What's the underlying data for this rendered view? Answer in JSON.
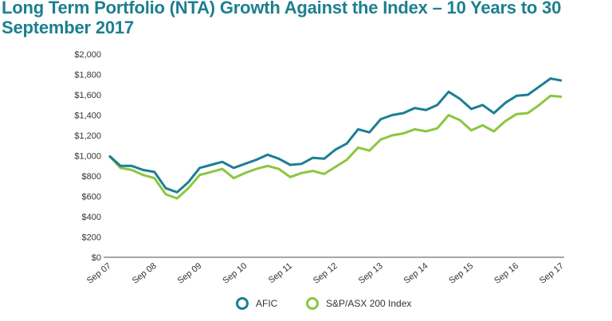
{
  "chart_data": {
    "type": "line",
    "title": "Long Term Portfolio (NTA) Growth Against the Index – 10 Years to 30 September 2017",
    "xlabel": "",
    "ylabel": "",
    "ylim": [
      0,
      2000
    ],
    "yticks": [
      "$0",
      "$200",
      "$400",
      "$600",
      "$800",
      "$1,000",
      "$1,200",
      "$1,400",
      "$1,600",
      "$1,800",
      "$2,000"
    ],
    "ytick_values": [
      0,
      200,
      400,
      600,
      800,
      1000,
      1200,
      1400,
      1600,
      1800,
      2000
    ],
    "xticks": [
      "Sep 07",
      "Sep 08",
      "Sep 09",
      "Sep 10",
      "Sep 11",
      "Sep 12",
      "Sep 13",
      "Sep 14",
      "Sep 15",
      "Sep 16",
      "Sep 17"
    ],
    "x_note_period": "quarterly",
    "x": [
      "Sep 07",
      "Dec 07",
      "Mar 08",
      "Jun 08",
      "Sep 08",
      "Dec 08",
      "Mar 09",
      "Jun 09",
      "Sep 09",
      "Dec 09",
      "Mar 10",
      "Jun 10",
      "Sep 10",
      "Dec 10",
      "Mar 11",
      "Jun 11",
      "Sep 11",
      "Dec 11",
      "Mar 12",
      "Jun 12",
      "Sep 12",
      "Dec 12",
      "Mar 13",
      "Jun 13",
      "Sep 13",
      "Dec 13",
      "Mar 14",
      "Jun 14",
      "Sep 14",
      "Dec 14",
      "Mar 15",
      "Jun 15",
      "Sep 15",
      "Dec 15",
      "Mar 16",
      "Jun 16",
      "Sep 16",
      "Dec 16",
      "Mar 17",
      "Jun 17",
      "Sep 17"
    ],
    "series": [
      {
        "name": "AFIC",
        "color": "#1b7f93",
        "values": [
          1000,
          900,
          900,
          860,
          840,
          680,
          640,
          740,
          880,
          910,
          940,
          880,
          920,
          960,
          1010,
          970,
          910,
          920,
          980,
          970,
          1060,
          1120,
          1260,
          1230,
          1360,
          1400,
          1420,
          1470,
          1450,
          1500,
          1630,
          1560,
          1460,
          1500,
          1420,
          1520,
          1590,
          1600,
          1680,
          1760,
          1740
        ]
      },
      {
        "name": "S&P/ASX 200 Index",
        "color": "#8cc63f",
        "values": [
          1000,
          880,
          860,
          810,
          780,
          620,
          580,
          680,
          810,
          840,
          870,
          780,
          830,
          870,
          900,
          870,
          790,
          830,
          850,
          820,
          890,
          960,
          1080,
          1050,
          1160,
          1200,
          1220,
          1260,
          1240,
          1270,
          1400,
          1350,
          1250,
          1300,
          1240,
          1340,
          1410,
          1420,
          1500,
          1590,
          1580
        ]
      }
    ],
    "grid": false,
    "legend": "bottom"
  }
}
